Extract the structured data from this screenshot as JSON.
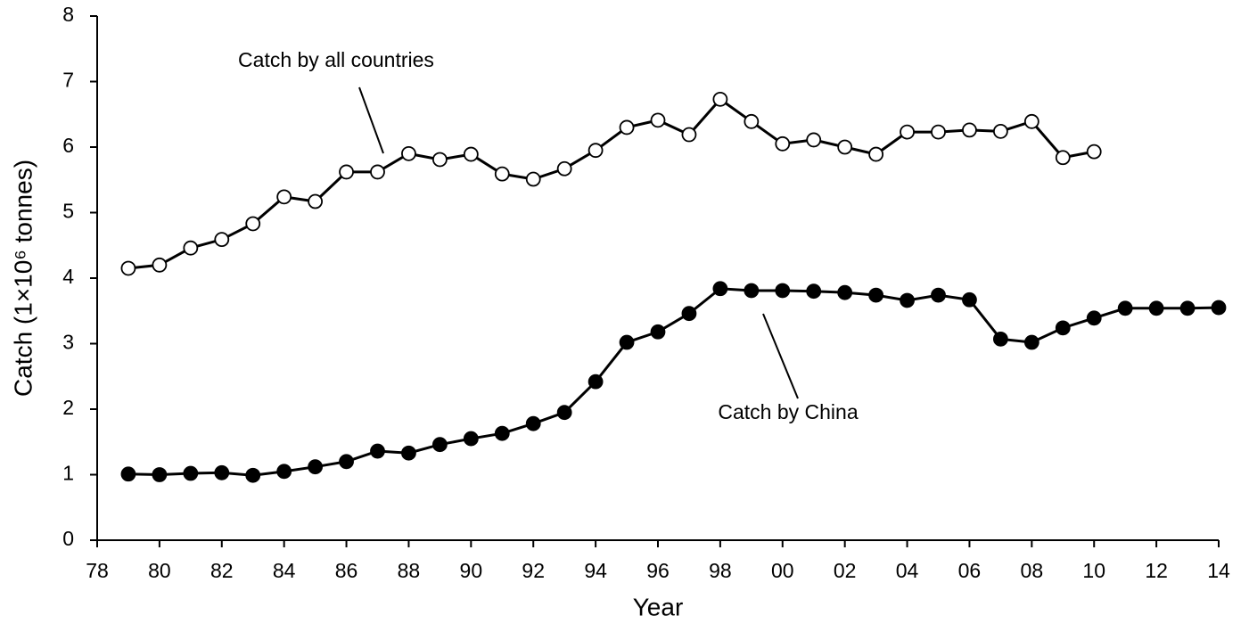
{
  "chart_data": {
    "type": "line",
    "xlabel": "Year",
    "ylabel": "Catch (1×10⁶ tonnes)",
    "x": [
      1979,
      1980,
      1981,
      1982,
      1983,
      1984,
      1985,
      1986,
      1987,
      1988,
      1989,
      1990,
      1991,
      1992,
      1993,
      1994,
      1995,
      1996,
      1997,
      1998,
      1999,
      2000,
      2001,
      2002,
      2003,
      2004,
      2005,
      2006,
      2007,
      2008,
      2009,
      2010,
      2011,
      2012,
      2013,
      2014
    ],
    "series": [
      {
        "name": "Catch by all countries",
        "color": "#000000",
        "marker_fill": "#ffffff",
        "values": [
          4.15,
          4.2,
          4.46,
          4.59,
          4.83,
          5.24,
          5.17,
          5.62,
          5.62,
          5.9,
          5.81,
          5.89,
          5.59,
          5.51,
          5.67,
          5.95,
          6.3,
          6.41,
          6.19,
          6.73,
          6.39,
          6.05,
          6.11,
          6.0,
          5.89,
          6.23,
          6.23,
          6.26,
          6.24,
          6.39,
          5.84,
          5.93,
          null,
          null,
          null,
          null
        ]
      },
      {
        "name": "Catch by China",
        "color": "#000000",
        "marker_fill": "#000000",
        "values": [
          1.01,
          1.0,
          1.02,
          1.03,
          0.99,
          1.05,
          1.12,
          1.2,
          1.36,
          1.33,
          1.46,
          1.55,
          1.63,
          1.78,
          1.95,
          2.42,
          3.02,
          3.18,
          3.46,
          3.84,
          3.81,
          3.81,
          3.8,
          3.78,
          3.74,
          3.66,
          3.74,
          3.67,
          3.07,
          3.02,
          3.24,
          3.39,
          3.54,
          3.54,
          3.54,
          3.55
        ]
      }
    ],
    "xlim": [
      1978,
      2014
    ],
    "xticks": [
      {
        "value": 1978,
        "label": "78"
      },
      {
        "value": 1980,
        "label": "80"
      },
      {
        "value": 1982,
        "label": "82"
      },
      {
        "value": 1984,
        "label": "84"
      },
      {
        "value": 1986,
        "label": "86"
      },
      {
        "value": 1988,
        "label": "88"
      },
      {
        "value": 1990,
        "label": "90"
      },
      {
        "value": 1992,
        "label": "92"
      },
      {
        "value": 1994,
        "label": "94"
      },
      {
        "value": 1996,
        "label": "96"
      },
      {
        "value": 1998,
        "label": "98"
      },
      {
        "value": 2000,
        "label": "00"
      },
      {
        "value": 2002,
        "label": "02"
      },
      {
        "value": 2004,
        "label": "04"
      },
      {
        "value": 2006,
        "label": "06"
      },
      {
        "value": 2008,
        "label": "08"
      },
      {
        "value": 2010,
        "label": "10"
      },
      {
        "value": 2012,
        "label": "12"
      },
      {
        "value": 2014,
        "label": "14"
      }
    ],
    "ylim": [
      0,
      8
    ],
    "yticks": [
      0,
      1,
      2,
      3,
      4,
      5,
      6,
      7,
      8
    ],
    "grid": false
  }
}
